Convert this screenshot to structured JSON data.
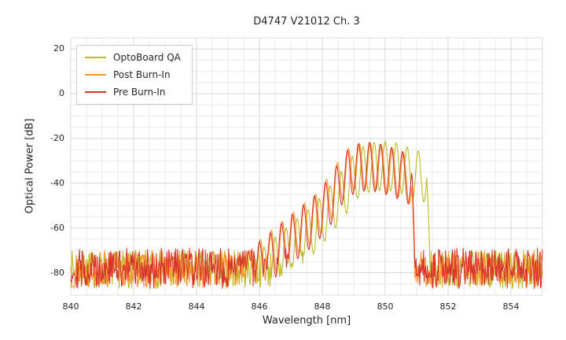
{
  "chart_data": {
    "type": "line",
    "title": "D4747 V21012 Ch. 3",
    "xlabel": "Wavelength [nm]",
    "ylabel": "Optical Power [dB]",
    "xlim": [
      840,
      855
    ],
    "ylim": [
      -90,
      25
    ],
    "xticks": [
      840,
      842,
      844,
      846,
      848,
      850,
      852,
      854
    ],
    "yticks": [
      20,
      0,
      -20,
      -40,
      -60,
      -80
    ],
    "x_minor_step": 0.5,
    "y_minor_step": 5,
    "grid": true,
    "grid_minor_color": "#e9e9e9",
    "grid_major_color": "#d7d7d7",
    "background": "#ffffff",
    "legend_position": "upper left",
    "sample_step_nm": 0.02,
    "series": [
      {
        "name": "OptoBoard QA",
        "color": "#bcbd22",
        "seed": 7,
        "noise_floor_db": -78.5,
        "noise_amplitude_db": 8.5,
        "signal_range_nm": [
          845.7,
          851.44
        ],
        "fringe_period_nm": 0.35,
        "fringe_depth_db": 22,
        "fringe_peak_anchor_nm": 849.3,
        "envelope_points": [
          [
            845.7,
            -74
          ],
          [
            846.5,
            -64
          ],
          [
            847.1,
            -57
          ],
          [
            847.7,
            -50
          ],
          [
            848.2,
            -42
          ],
          [
            848.7,
            -33
          ],
          [
            849.1,
            -25
          ],
          [
            849.5,
            -22
          ],
          [
            849.9,
            -21.2
          ],
          [
            850.3,
            -21.6
          ],
          [
            850.6,
            -23
          ],
          [
            850.9,
            -25
          ],
          [
            851.2,
            -26
          ],
          [
            851.32,
            -28
          ],
          [
            851.44,
            -82
          ]
        ],
        "peak_power_db": -21.2,
        "peak_wavelength_nm": 849.9
      },
      {
        "name": "Post Burn-In",
        "color": "#f9962f",
        "seed": 13,
        "noise_floor_db": -78.5,
        "noise_amplitude_db": 8.5,
        "signal_range_nm": [
          845.3,
          850.94
        ],
        "fringe_period_nm": 0.35,
        "fringe_depth_db": 21,
        "fringe_peak_anchor_nm": 849.18,
        "envelope_points": [
          [
            845.3,
            -75
          ],
          [
            846.0,
            -65.5
          ],
          [
            846.6,
            -58.5
          ],
          [
            847.2,
            -51.5
          ],
          [
            847.8,
            -44.5
          ],
          [
            848.3,
            -35
          ],
          [
            848.65,
            -26.5
          ],
          [
            849.0,
            -22.4
          ],
          [
            849.35,
            -21.8
          ],
          [
            849.7,
            -22.2
          ],
          [
            850.05,
            -23.6
          ],
          [
            850.4,
            -25.4
          ],
          [
            850.7,
            -27
          ],
          [
            850.85,
            -31
          ],
          [
            850.94,
            -82
          ]
        ],
        "peak_power_db": -21.8,
        "peak_wavelength_nm": 849.35
      },
      {
        "name": "Pre Burn-In",
        "color": "#d9342b",
        "seed": 29,
        "noise_floor_db": -78,
        "noise_amplitude_db": 9,
        "signal_range_nm": [
          845.2,
          850.96
        ],
        "fringe_period_nm": 0.35,
        "fringe_depth_db": 22,
        "fringe_peak_anchor_nm": 849.15,
        "envelope_points": [
          [
            845.2,
            -76
          ],
          [
            846.0,
            -66
          ],
          [
            846.6,
            -59
          ],
          [
            847.2,
            -52
          ],
          [
            847.8,
            -45
          ],
          [
            848.3,
            -36
          ],
          [
            848.65,
            -27
          ],
          [
            849.0,
            -22.8
          ],
          [
            849.35,
            -21.6
          ],
          [
            849.7,
            -21.9
          ],
          [
            850.05,
            -23.2
          ],
          [
            850.4,
            -25
          ],
          [
            850.7,
            -26.5
          ],
          [
            850.85,
            -30
          ],
          [
            850.96,
            -82
          ]
        ],
        "peak_power_db": -21.6,
        "peak_wavelength_nm": 849.35
      }
    ]
  }
}
